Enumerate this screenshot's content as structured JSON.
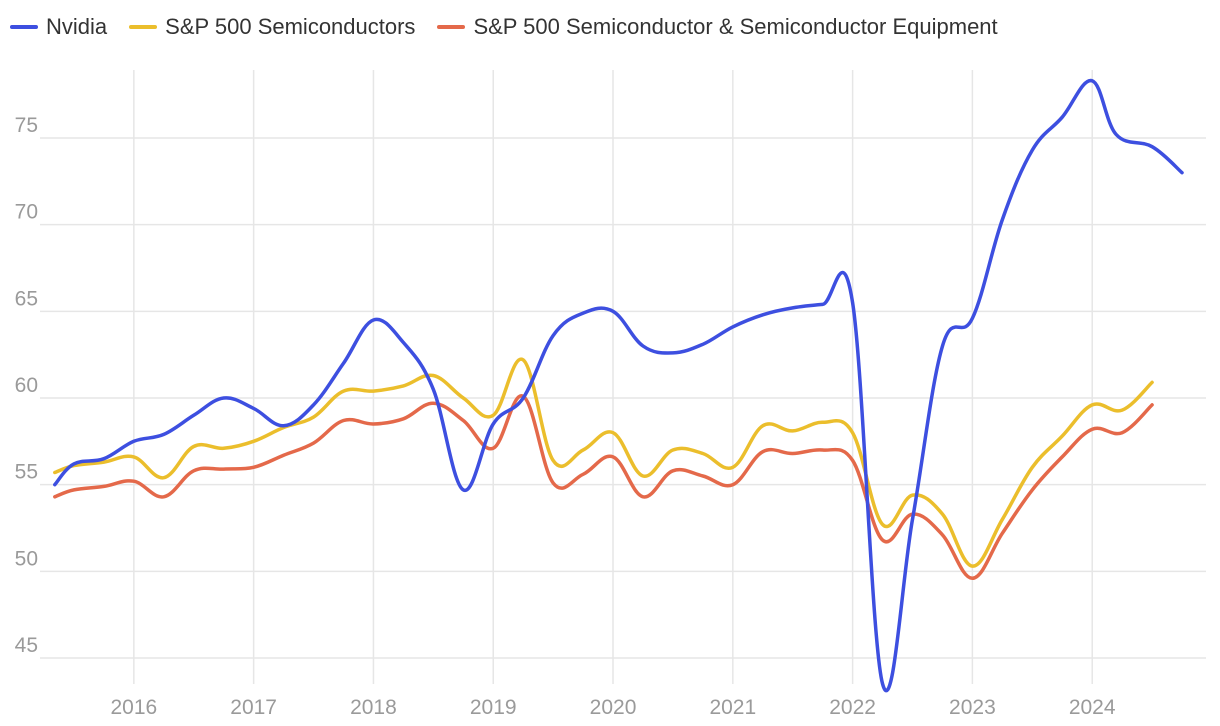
{
  "chart_data": {
    "type": "line",
    "title": "",
    "xlabel": "",
    "ylabel": "",
    "xlim": [
      2015.25,
      2024.95
    ],
    "ylim": [
      43.5,
      79.5
    ],
    "grid": true,
    "legend_position": "top-left",
    "x_ticks": [
      {
        "value": 2016,
        "label": "2016"
      },
      {
        "value": 2017,
        "label": "2017"
      },
      {
        "value": 2018,
        "label": "2018"
      },
      {
        "value": 2019,
        "label": "2019"
      },
      {
        "value": 2020,
        "label": "2020"
      },
      {
        "value": 2021,
        "label": "2021"
      },
      {
        "value": 2022,
        "label": "2022"
      },
      {
        "value": 2023,
        "label": "2023"
      },
      {
        "value": 2024,
        "label": "2024"
      }
    ],
    "y_ticks": [
      {
        "value": 45,
        "label": "45"
      },
      {
        "value": 50,
        "label": "50"
      },
      {
        "value": 55,
        "label": "55"
      },
      {
        "value": 60,
        "label": "60"
      },
      {
        "value": 65,
        "label": "65"
      },
      {
        "value": 70,
        "label": "70"
      },
      {
        "value": 75,
        "label": "75"
      }
    ],
    "series": [
      {
        "name": "Nvidia",
        "color": "#3d4fe0",
        "points": [
          [
            2015.34,
            55.0
          ],
          [
            2015.5,
            56.2
          ],
          [
            2015.75,
            56.5
          ],
          [
            2016.0,
            57.5
          ],
          [
            2016.25,
            57.9
          ],
          [
            2016.5,
            59.0
          ],
          [
            2016.75,
            60.0
          ],
          [
            2017.0,
            59.4
          ],
          [
            2017.25,
            58.4
          ],
          [
            2017.5,
            59.6
          ],
          [
            2017.75,
            62.0
          ],
          [
            2018.0,
            64.5
          ],
          [
            2018.25,
            63.2
          ],
          [
            2018.5,
            60.5
          ],
          [
            2018.75,
            54.7
          ],
          [
            2019.0,
            58.5
          ],
          [
            2019.25,
            60.0
          ],
          [
            2019.5,
            63.6
          ],
          [
            2019.75,
            64.9
          ],
          [
            2020.0,
            65.0
          ],
          [
            2020.25,
            63.0
          ],
          [
            2020.5,
            62.6
          ],
          [
            2020.75,
            63.1
          ],
          [
            2021.0,
            64.1
          ],
          [
            2021.25,
            64.8
          ],
          [
            2021.5,
            65.2
          ],
          [
            2021.75,
            65.4
          ],
          [
            2022.0,
            65.5
          ],
          [
            2022.25,
            43.5
          ],
          [
            2022.5,
            53.0
          ],
          [
            2022.75,
            63.0
          ],
          [
            2023.0,
            64.6
          ],
          [
            2023.25,
            70.3
          ],
          [
            2023.5,
            74.3
          ],
          [
            2023.75,
            76.2
          ],
          [
            2024.0,
            78.3
          ],
          [
            2024.2,
            75.2
          ],
          [
            2024.5,
            74.5
          ],
          [
            2024.75,
            73.0
          ]
        ]
      },
      {
        "name": "S&P 500 Semiconductors",
        "color": "#ebbe2c",
        "points": [
          [
            2015.34,
            55.7
          ],
          [
            2015.5,
            56.1
          ],
          [
            2015.75,
            56.3
          ],
          [
            2016.0,
            56.6
          ],
          [
            2016.25,
            55.4
          ],
          [
            2016.5,
            57.2
          ],
          [
            2016.75,
            57.1
          ],
          [
            2017.0,
            57.5
          ],
          [
            2017.25,
            58.3
          ],
          [
            2017.5,
            58.9
          ],
          [
            2017.75,
            60.4
          ],
          [
            2018.0,
            60.4
          ],
          [
            2018.25,
            60.7
          ],
          [
            2018.5,
            61.3
          ],
          [
            2018.75,
            60.0
          ],
          [
            2019.0,
            59.0
          ],
          [
            2019.25,
            62.2
          ],
          [
            2019.5,
            56.4
          ],
          [
            2019.75,
            57.0
          ],
          [
            2020.0,
            58.0
          ],
          [
            2020.25,
            55.5
          ],
          [
            2020.5,
            57.0
          ],
          [
            2020.75,
            56.8
          ],
          [
            2021.0,
            56.0
          ],
          [
            2021.25,
            58.4
          ],
          [
            2021.5,
            58.1
          ],
          [
            2021.75,
            58.6
          ],
          [
            2022.0,
            58.0
          ],
          [
            2022.25,
            52.7
          ],
          [
            2022.5,
            54.4
          ],
          [
            2022.75,
            53.3
          ],
          [
            2023.0,
            50.3
          ],
          [
            2023.25,
            53.0
          ],
          [
            2023.5,
            56.0
          ],
          [
            2023.75,
            57.8
          ],
          [
            2024.0,
            59.6
          ],
          [
            2024.25,
            59.3
          ],
          [
            2024.5,
            60.9
          ]
        ]
      },
      {
        "name": "S&P 500 Semiconductor & Semiconductor Equipment",
        "color": "#e4694a",
        "points": [
          [
            2015.34,
            54.3
          ],
          [
            2015.5,
            54.7
          ],
          [
            2015.75,
            54.9
          ],
          [
            2016.0,
            55.2
          ],
          [
            2016.25,
            54.3
          ],
          [
            2016.5,
            55.8
          ],
          [
            2016.75,
            55.9
          ],
          [
            2017.0,
            56.0
          ],
          [
            2017.25,
            56.7
          ],
          [
            2017.5,
            57.4
          ],
          [
            2017.75,
            58.7
          ],
          [
            2018.0,
            58.5
          ],
          [
            2018.25,
            58.8
          ],
          [
            2018.5,
            59.7
          ],
          [
            2018.75,
            58.7
          ],
          [
            2019.0,
            57.1
          ],
          [
            2019.25,
            60.1
          ],
          [
            2019.5,
            55.1
          ],
          [
            2019.75,
            55.6
          ],
          [
            2020.0,
            56.6
          ],
          [
            2020.25,
            54.3
          ],
          [
            2020.5,
            55.8
          ],
          [
            2020.75,
            55.5
          ],
          [
            2021.0,
            55.0
          ],
          [
            2021.25,
            56.9
          ],
          [
            2021.5,
            56.8
          ],
          [
            2021.75,
            57.0
          ],
          [
            2022.0,
            56.4
          ],
          [
            2022.25,
            51.8
          ],
          [
            2022.5,
            53.3
          ],
          [
            2022.75,
            52.1
          ],
          [
            2023.0,
            49.6
          ],
          [
            2023.25,
            52.2
          ],
          [
            2023.5,
            54.7
          ],
          [
            2023.75,
            56.6
          ],
          [
            2024.0,
            58.2
          ],
          [
            2024.25,
            58.0
          ],
          [
            2024.5,
            59.6
          ]
        ]
      }
    ]
  }
}
